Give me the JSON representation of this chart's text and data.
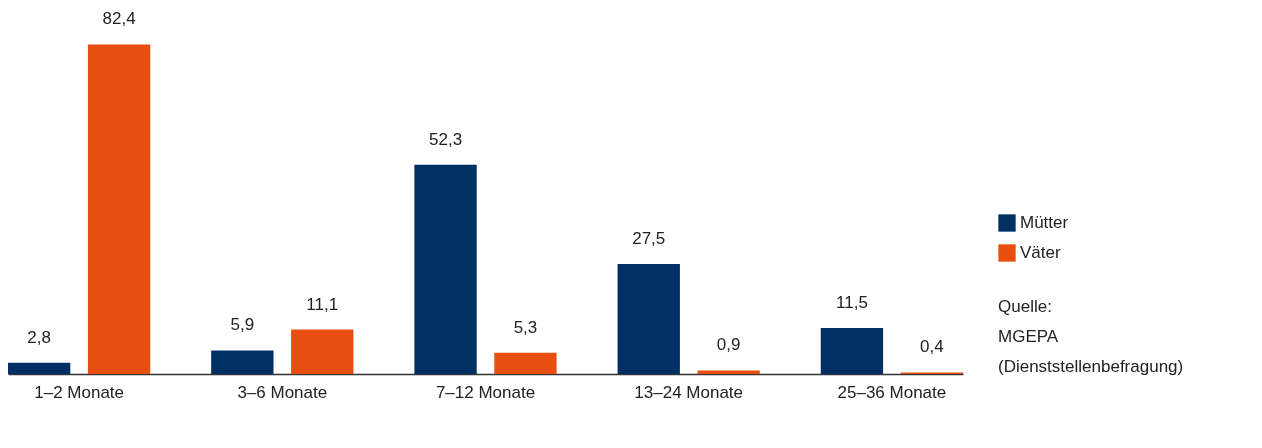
{
  "chart_data": {
    "type": "bar",
    "categories": [
      "1–2 Monate",
      "3–6 Monate",
      "7–12 Monate",
      "13–24 Monate",
      "25–36 Monate"
    ],
    "series": [
      {
        "name": "Mütter",
        "color": "#003063",
        "values": [
          2.8,
          5.9,
          52.3,
          27.5,
          11.5
        ],
        "value_labels": [
          "2,8",
          "5,9",
          "52,3",
          "27,5",
          "11,5"
        ]
      },
      {
        "name": "Väter",
        "color": "#e84e10",
        "values": [
          82.4,
          11.1,
          5.3,
          0.9,
          0.4
        ],
        "value_labels": [
          "82,4",
          "11,1",
          "5,3",
          "0,9",
          "0,4"
        ]
      }
    ],
    "legend": "right",
    "annotations": [
      "Quelle:\nMGEPA\n(Dienststellenbefragung)"
    ]
  }
}
